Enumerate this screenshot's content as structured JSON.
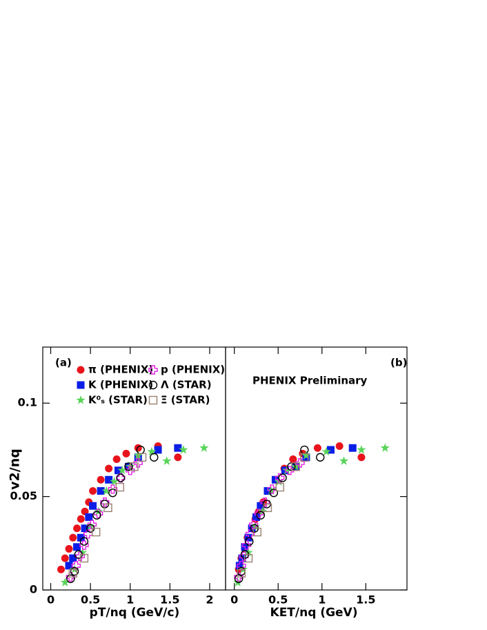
{
  "chart_data": [
    {
      "type": "scatter",
      "title": "(a)",
      "xlabel": "pT/nq (GeV/c)",
      "ylabel": "v2/nq",
      "xlim": [
        -0.1,
        2.2
      ],
      "ylim": [
        0,
        0.13
      ],
      "xticks": [
        0,
        0.5,
        1,
        1.5,
        2
      ],
      "yticks": [
        0,
        0.05,
        0.1
      ],
      "series": [
        {
          "name": "π (PHENIX)",
          "color": "#e8141c",
          "marker": "circle",
          "x": [
            0.13,
            0.18,
            0.23,
            0.28,
            0.33,
            0.38,
            0.43,
            0.48,
            0.53,
            0.63,
            0.73,
            0.83,
            0.95,
            1.1,
            1.35,
            1.6
          ],
          "values": [
            0.011,
            0.017,
            0.022,
            0.028,
            0.033,
            0.038,
            0.042,
            0.047,
            0.053,
            0.059,
            0.065,
            0.07,
            0.073,
            0.076,
            0.077,
            0.071
          ]
        },
        {
          "name": "K (PHENIX)",
          "color": "#0a1ee6",
          "marker": "square",
          "x": [
            0.23,
            0.28,
            0.33,
            0.38,
            0.43,
            0.48,
            0.53,
            0.63,
            0.73,
            0.85,
            0.98,
            1.1,
            1.35,
            1.6
          ],
          "values": [
            0.013,
            0.017,
            0.023,
            0.028,
            0.033,
            0.039,
            0.045,
            0.053,
            0.059,
            0.064,
            0.066,
            0.071,
            0.075,
            0.076
          ]
        },
        {
          "name": "K⁰ₛ (STAR)",
          "color": "#5ad45a",
          "marker": "star",
          "x": [
            0.18,
            0.3,
            0.4,
            0.5,
            0.6,
            0.7,
            0.8,
            0.9,
            1.0,
            1.1,
            1.27,
            1.46,
            1.67,
            1.93
          ],
          "values": [
            0.004,
            0.011,
            0.02,
            0.034,
            0.042,
            0.053,
            0.058,
            0.064,
            0.066,
            0.072,
            0.074,
            0.069,
            0.075,
            0.076
          ]
        },
        {
          "name": "p (PHENIX)",
          "color": "#e020e0",
          "marker": "cross",
          "x": [
            0.25,
            0.32,
            0.37,
            0.42,
            0.47,
            0.52,
            0.6,
            0.68,
            0.78,
            0.88,
            1.0,
            1.1
          ],
          "values": [
            0.007,
            0.013,
            0.018,
            0.024,
            0.03,
            0.035,
            0.041,
            0.047,
            0.054,
            0.06,
            0.064,
            0.068
          ]
        },
        {
          "name": "Λ (STAR)",
          "color": "#000000",
          "marker": "open-circle",
          "x": [
            0.25,
            0.3,
            0.35,
            0.42,
            0.5,
            0.58,
            0.68,
            0.78,
            0.88,
            0.98,
            1.13,
            1.3
          ],
          "values": [
            0.006,
            0.01,
            0.019,
            0.026,
            0.033,
            0.04,
            0.046,
            0.052,
            0.06,
            0.066,
            0.075,
            0.071
          ]
        },
        {
          "name": "Ξ (STAR)",
          "color": "#9a8070",
          "marker": "open-square",
          "x": [
            0.28,
            0.42,
            0.57,
            0.72,
            0.87,
            1.05,
            1.15
          ],
          "values": [
            0.009,
            0.017,
            0.031,
            0.044,
            0.055,
            0.066,
            0.071
          ]
        }
      ]
    },
    {
      "type": "scatter",
      "title": "(b)",
      "annotation": "PHENIX Preliminary",
      "xlabel": "KET/nq (GeV)",
      "xlim": [
        -0.1,
        1.97
      ],
      "ylim": [
        0,
        0.13
      ],
      "xticks": [
        0,
        0.5,
        1,
        1.5
      ],
      "series": [
        {
          "color": "#e8141c",
          "marker": "circle",
          "x": [
            0.05,
            0.08,
            0.12,
            0.15,
            0.2,
            0.24,
            0.28,
            0.33,
            0.38,
            0.47,
            0.57,
            0.67,
            0.78,
            0.95,
            1.2,
            1.45
          ],
          "values": [
            0.011,
            0.017,
            0.022,
            0.028,
            0.033,
            0.038,
            0.042,
            0.047,
            0.053,
            0.059,
            0.065,
            0.07,
            0.073,
            0.076,
            0.077,
            0.071
          ]
        },
        {
          "color": "#0a1ee6",
          "marker": "square",
          "x": [
            0.06,
            0.09,
            0.12,
            0.16,
            0.2,
            0.25,
            0.3,
            0.38,
            0.47,
            0.58,
            0.7,
            0.82,
            1.1,
            1.35
          ],
          "values": [
            0.013,
            0.017,
            0.023,
            0.028,
            0.033,
            0.039,
            0.045,
            0.053,
            0.059,
            0.064,
            0.066,
            0.071,
            0.075,
            0.076
          ]
        },
        {
          "color": "#5ad45a",
          "marker": "star",
          "x": [
            0.04,
            0.1,
            0.16,
            0.24,
            0.32,
            0.42,
            0.51,
            0.6,
            0.7,
            0.82,
            1.05,
            1.25,
            1.45,
            1.72
          ],
          "values": [
            0.004,
            0.011,
            0.02,
            0.034,
            0.042,
            0.053,
            0.058,
            0.064,
            0.066,
            0.072,
            0.074,
            0.069,
            0.075,
            0.076
          ]
        },
        {
          "color": "#e020e0",
          "marker": "cross",
          "x": [
            0.05,
            0.08,
            0.11,
            0.14,
            0.18,
            0.22,
            0.28,
            0.35,
            0.43,
            0.52,
            0.63,
            0.75
          ],
          "values": [
            0.007,
            0.013,
            0.018,
            0.024,
            0.03,
            0.035,
            0.041,
            0.047,
            0.054,
            0.06,
            0.064,
            0.068
          ]
        },
        {
          "color": "#000000",
          "marker": "open-circle",
          "x": [
            0.05,
            0.08,
            0.12,
            0.17,
            0.23,
            0.3,
            0.37,
            0.45,
            0.55,
            0.65,
            0.8,
            0.98
          ],
          "values": [
            0.006,
            0.01,
            0.019,
            0.026,
            0.033,
            0.04,
            0.046,
            0.052,
            0.06,
            0.066,
            0.075,
            0.071
          ]
        },
        {
          "color": "#9a8070",
          "marker": "open-square",
          "x": [
            0.08,
            0.16,
            0.26,
            0.38,
            0.52,
            0.7,
            0.8
          ],
          "values": [
            0.009,
            0.017,
            0.031,
            0.044,
            0.055,
            0.066,
            0.071
          ]
        }
      ]
    }
  ]
}
